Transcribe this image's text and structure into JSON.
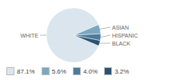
{
  "chart_data": {
    "type": "pie",
    "categories": [
      "WHITE",
      "ASIAN",
      "HISPANIC",
      "BLACK"
    ],
    "values": [
      87.1,
      5.6,
      4.0,
      3.2
    ],
    "colors": [
      "#dae5ed",
      "#7ba7bf",
      "#4d7a9a",
      "#2b5272"
    ],
    "value_labels": [
      "87.1%",
      "5.6%",
      "4.0%",
      "3.2%"
    ],
    "legend": "bottom"
  }
}
